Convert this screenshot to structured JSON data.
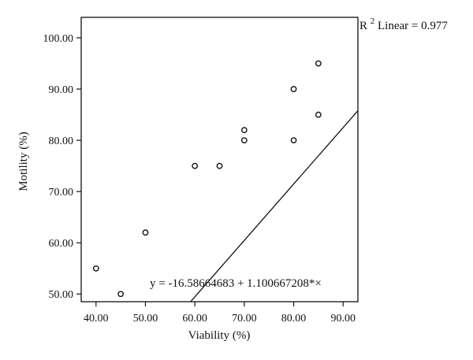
{
  "chart_data": {
    "type": "scatter",
    "title": "",
    "xlabel": "Viability (%)",
    "ylabel": "Motility (%)",
    "xlim": [
      37,
      93
    ],
    "ylim": [
      48.5,
      104
    ],
    "x_ticks": [
      "40.00",
      "50.00",
      "60.00",
      "70.00",
      "80.00",
      "90.00"
    ],
    "y_ticks": [
      "50.00",
      "60.00",
      "70.00",
      "80.00",
      "90.00",
      "100.00"
    ],
    "grid": false,
    "series": [
      {
        "points": [
          {
            "x": 40,
            "y": 55
          },
          {
            "x": 45,
            "y": 50
          },
          {
            "x": 50,
            "y": 62
          },
          {
            "x": 60,
            "y": 75
          },
          {
            "x": 65,
            "y": 75
          },
          {
            "x": 70,
            "y": 82
          },
          {
            "x": 70,
            "y": 80
          },
          {
            "x": 80,
            "y": 90
          },
          {
            "x": 80,
            "y": 80
          },
          {
            "x": 85,
            "y": 95
          },
          {
            "x": 85,
            "y": 85
          }
        ]
      }
    ],
    "fit_line": {
      "intercept": -16.58664683,
      "slope": 1.100667208
    },
    "annotations": {
      "r2_prefix": "R",
      "r2_sup": "2",
      "r2_text": " Linear = 0.977",
      "equation": "y = -16.58664683 + 1.100667208*×"
    }
  }
}
